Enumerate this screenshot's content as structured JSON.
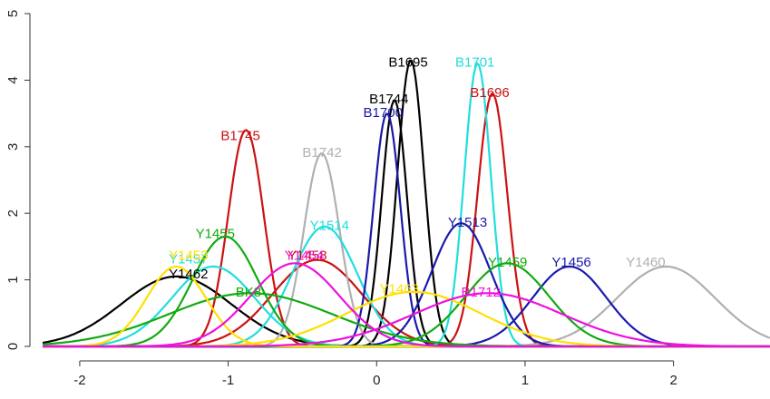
{
  "chart_data": {
    "type": "line",
    "title": "",
    "xlabel": "",
    "ylabel": "",
    "xlim": [
      -2.25,
      2.65
    ],
    "ylim": [
      0,
      5
    ],
    "x_ticks": [
      -2,
      -1,
      0,
      1,
      2
    ],
    "x_tick_labels": [
      "-2",
      "-1",
      "0",
      "1",
      "2"
    ],
    "y_ticks": [
      0,
      1,
      2,
      3,
      4,
      5
    ],
    "y_tick_labels": [
      "0",
      "1",
      "2",
      "3",
      "4",
      "5"
    ],
    "grid": false,
    "legend": "none",
    "series": [
      {
        "name": "Y1462",
        "color": "#000000",
        "mean": -1.35,
        "sd": 0.37,
        "peak": 1.05,
        "label_x": -1.4,
        "label_y": 1.02
      },
      {
        "name": "B1744",
        "color": "#000000",
        "mean": 0.12,
        "sd": 0.085,
        "peak": 3.7,
        "label_x": -0.05,
        "label_y": 3.65
      },
      {
        "name": "B1695",
        "color": "#000000",
        "mean": 0.23,
        "sd": 0.09,
        "peak": 4.3,
        "label_x": 0.08,
        "label_y": 4.2
      },
      {
        "name": "B1745",
        "color": "#cc1111",
        "mean": -0.88,
        "sd": 0.12,
        "peak": 3.25,
        "label_x": -1.05,
        "label_y": 3.1
      },
      {
        "name": "B1696",
        "color": "#cc1111",
        "mean": 0.78,
        "sd": 0.1,
        "peak": 3.8,
        "label_x": 0.63,
        "label_y": 3.75
      },
      {
        "name": "Y1458",
        "color": "#cc1111",
        "mean": -0.4,
        "sd": 0.3,
        "peak": 1.3,
        "label_x": -0.6,
        "label_y": 1.3
      },
      {
        "name": "B1742",
        "color": "#b0b0b0",
        "mean": -0.37,
        "sd": 0.12,
        "peak": 2.9,
        "label_x": -0.5,
        "label_y": 2.85
      },
      {
        "name": "Y1460",
        "color": "#b0b0b0",
        "mean": 1.95,
        "sd": 0.33,
        "peak": 1.2,
        "label_x": 1.68,
        "label_y": 1.2
      },
      {
        "name": "B1701",
        "color": "#22dddd",
        "mean": 0.68,
        "sd": 0.09,
        "peak": 4.25,
        "label_x": 0.53,
        "label_y": 4.2
      },
      {
        "name": "Y1514",
        "color": "#22dddd",
        "mean": -0.35,
        "sd": 0.22,
        "peak": 1.8,
        "label_x": -0.45,
        "label_y": 1.75
      },
      {
        "name": "Y1457",
        "color": "#22dddd",
        "mean": -1.1,
        "sd": 0.28,
        "peak": 1.2,
        "label_x": -1.4,
        "label_y": 1.25
      },
      {
        "name": "B1700",
        "color": "#1a1aaa",
        "mean": 0.07,
        "sd": 0.09,
        "peak": 3.5,
        "label_x": -0.09,
        "label_y": 3.45
      },
      {
        "name": "Y1513",
        "color": "#1a1aaa",
        "mean": 0.57,
        "sd": 0.2,
        "peak": 1.85,
        "label_x": 0.48,
        "label_y": 1.8
      },
      {
        "name": "Y1456",
        "color": "#1a1aaa",
        "mean": 1.3,
        "sd": 0.25,
        "peak": 1.2,
        "label_x": 1.18,
        "label_y": 1.2
      },
      {
        "name": "Y1455",
        "color": "#11aa11",
        "mean": -1.02,
        "sd": 0.22,
        "peak": 1.65,
        "label_x": -1.22,
        "label_y": 1.63
      },
      {
        "name": "Y1459",
        "color": "#11aa11",
        "mean": 0.88,
        "sd": 0.28,
        "peak": 1.25,
        "label_x": 0.75,
        "label_y": 1.2
      },
      {
        "name": "BK8",
        "color": "#11aa11",
        "mean": -0.85,
        "sd": 0.55,
        "peak": 0.8,
        "label_x": -0.95,
        "label_y": 0.75
      },
      {
        "name": "Y1453",
        "color": "#ffe000",
        "mean": -1.35,
        "sd": 0.2,
        "peak": 1.2,
        "label_x": -1.4,
        "label_y": 1.3
      },
      {
        "name": "Y1463",
        "color": "#ffe000",
        "mean": 0.25,
        "sd": 0.45,
        "peak": 0.82,
        "label_x": 0.02,
        "label_y": 0.8
      },
      {
        "name": "Y1454",
        "color": "#ee11dd",
        "mean": -0.55,
        "sd": 0.3,
        "peak": 1.25,
        "label_x": -0.62,
        "label_y": 1.3
      },
      {
        "name": "B1712",
        "color": "#ee11dd",
        "mean": 0.75,
        "sd": 0.5,
        "peak": 0.8,
        "label_x": 0.57,
        "label_y": 0.75
      }
    ]
  }
}
